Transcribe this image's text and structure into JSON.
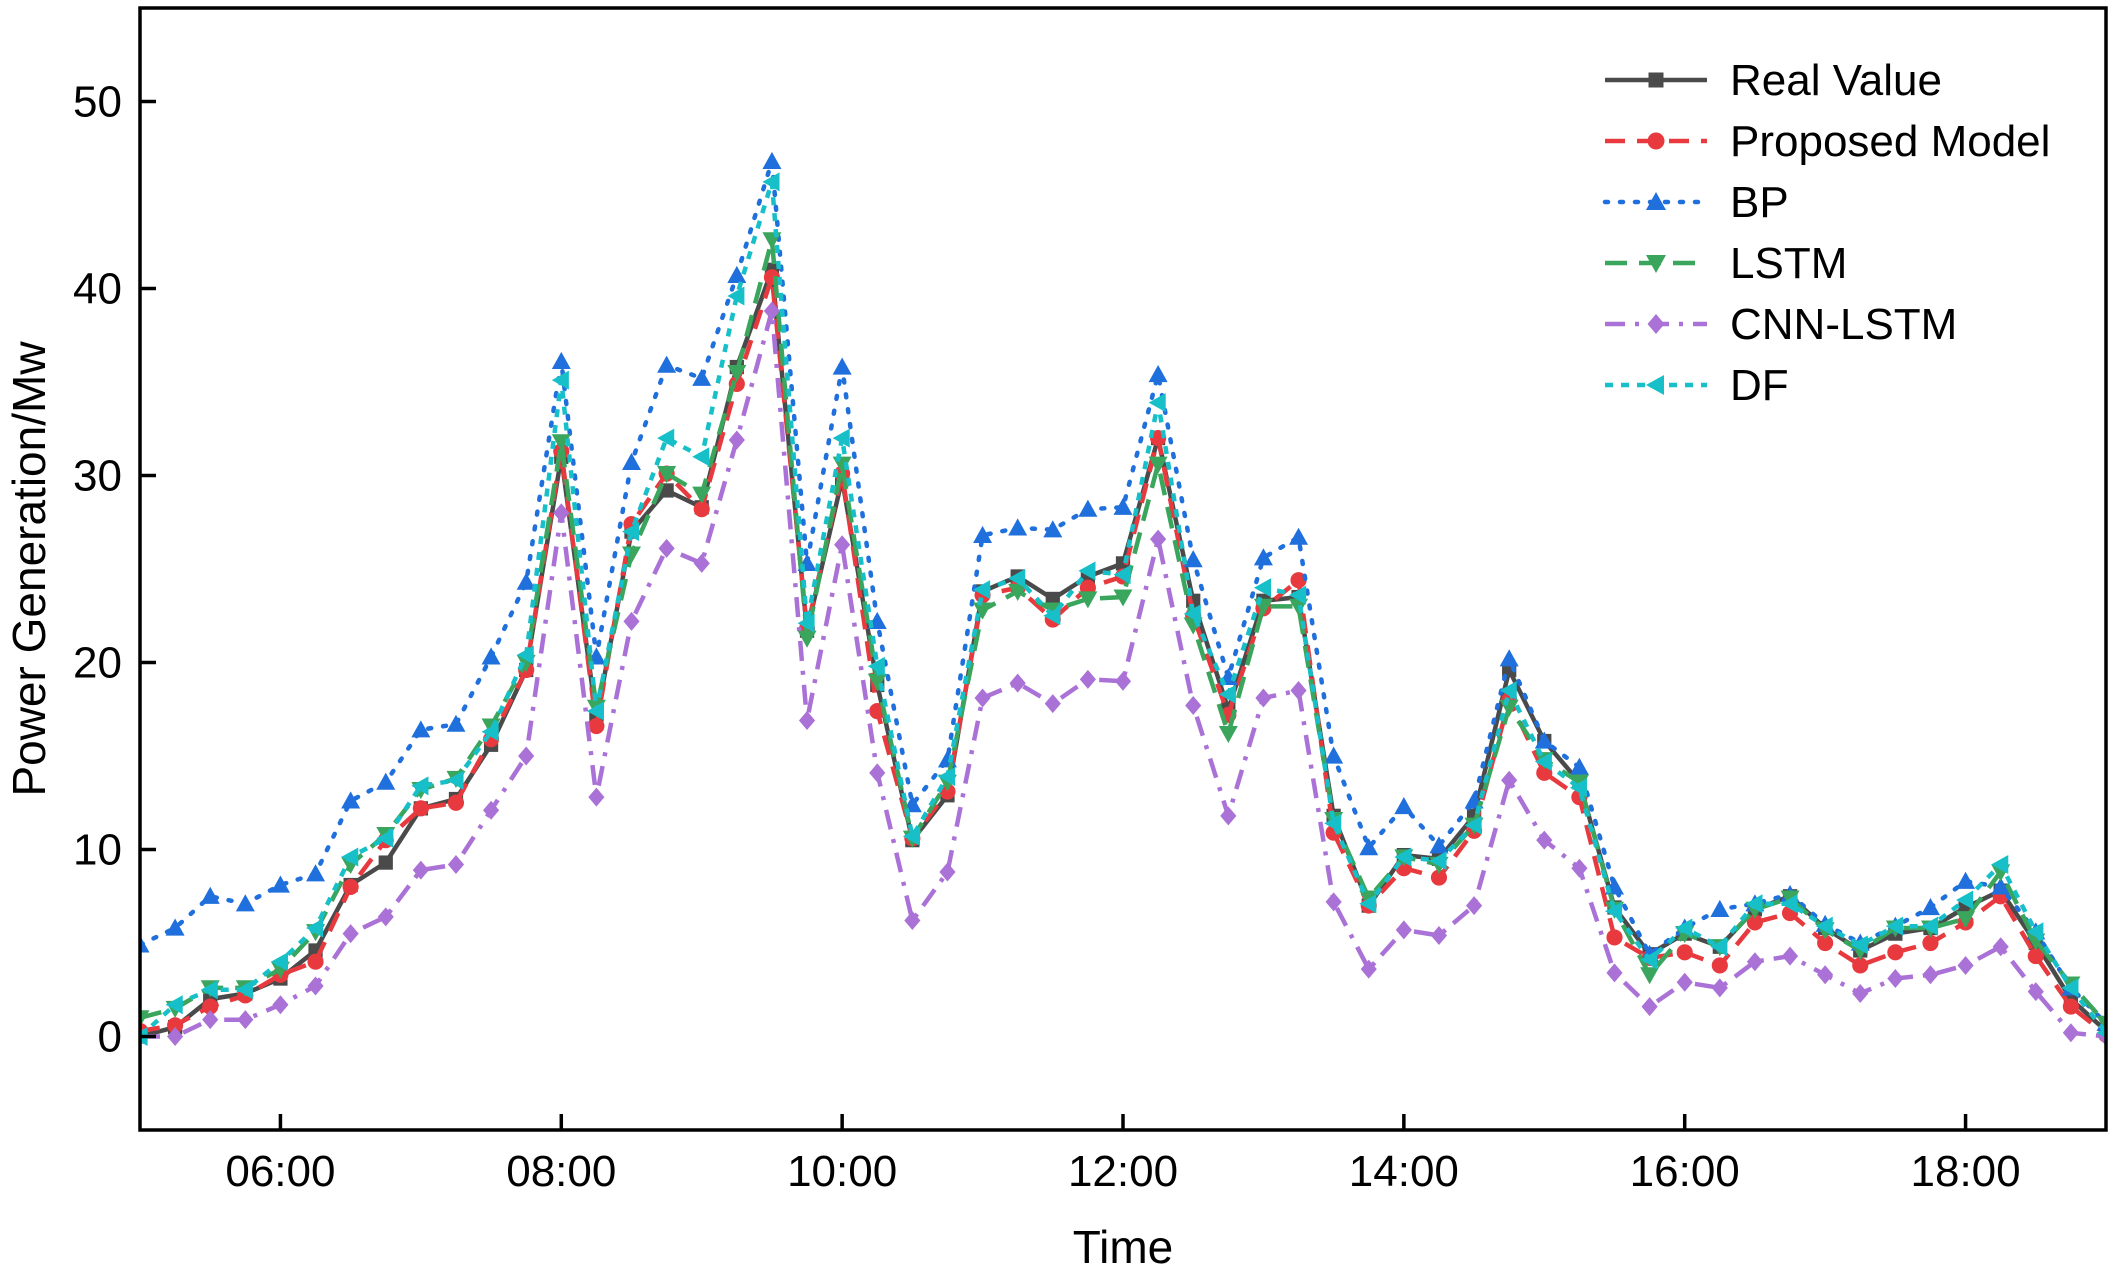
{
  "chart_data": {
    "type": "line",
    "title": "",
    "xlabel": "Time",
    "ylabel": "Power Generation/Mw",
    "xlim": [
      "05:00",
      "19:00"
    ],
    "ylim": [
      -5,
      55
    ],
    "xticks": [
      "06:00",
      "08:00",
      "10:00",
      "12:00",
      "14:00",
      "16:00",
      "18:00"
    ],
    "yticks": [
      0,
      10,
      20,
      30,
      40,
      50
    ],
    "legend_position": "top-right",
    "grid": false,
    "x": [
      "05:00",
      "05:15",
      "05:30",
      "05:45",
      "06:00",
      "06:15",
      "06:30",
      "06:45",
      "07:00",
      "07:15",
      "07:30",
      "07:45",
      "08:00",
      "08:15",
      "08:30",
      "08:45",
      "09:00",
      "09:15",
      "09:30",
      "09:45",
      "10:00",
      "10:15",
      "10:30",
      "10:45",
      "11:00",
      "11:15",
      "11:30",
      "11:45",
      "12:00",
      "12:15",
      "12:30",
      "12:45",
      "13:00",
      "13:15",
      "13:30",
      "13:45",
      "14:00",
      "14:15",
      "14:30",
      "14:45",
      "15:00",
      "15:15",
      "15:30",
      "15:45",
      "16:00",
      "16:15",
      "16:30",
      "16:45",
      "17:00",
      "17:15",
      "17:30",
      "17:45",
      "18:00",
      "18:15",
      "18:30",
      "18:45",
      "19:00"
    ],
    "series": [
      {
        "name": "Real Value",
        "color": "#4a4a4a",
        "dash": "",
        "marker": "square",
        "values": [
          0,
          0.5,
          2,
          2.3,
          3.1,
          4.6,
          8.1,
          9.3,
          12.2,
          12.7,
          15.6,
          19.6,
          31.0,
          17.0,
          27.0,
          29.2,
          28.3,
          35.8,
          41.0,
          21.7,
          29.8,
          18.8,
          10.5,
          12.9,
          23.8,
          24.6,
          23.4,
          24.6,
          25.3,
          32.0,
          23.3,
          17.5,
          23.3,
          23.5,
          11.8,
          7.0,
          9.7,
          9.5,
          11.8,
          19.6,
          15.8,
          13.6,
          6.9,
          4.4,
          5.5,
          4.8,
          6.8,
          7.5,
          5.8,
          4.6,
          5.5,
          5.8,
          6.9,
          7.8,
          5.0,
          2.0,
          0.3
        ]
      },
      {
        "name": "Proposed Model",
        "color": "#e83a3e",
        "dash": "20,12",
        "marker": "circle",
        "values": [
          0.3,
          0.6,
          1.6,
          2.2,
          3.3,
          4.0,
          8.0,
          10.5,
          12.2,
          12.5,
          15.9,
          19.6,
          31.3,
          16.6,
          27.4,
          30.1,
          28.2,
          34.9,
          40.6,
          21.8,
          30.1,
          17.4,
          10.6,
          13.1,
          23.6,
          24.0,
          22.3,
          24.0,
          24.6,
          32.0,
          22.5,
          17.2,
          22.9,
          24.4,
          10.9,
          7.0,
          9.0,
          8.5,
          11.0,
          18.0,
          14.1,
          12.8,
          5.3,
          4.2,
          4.5,
          3.8,
          6.1,
          6.6,
          5.0,
          3.8,
          4.5,
          5.0,
          6.1,
          7.5,
          4.3,
          1.6,
          0.1
        ]
      },
      {
        "name": "BP",
        "color": "#1f6fdc",
        "dash": "3,12",
        "marker": "triangle-up",
        "values": [
          4.9,
          5.8,
          7.5,
          7.1,
          8.1,
          8.7,
          12.6,
          13.6,
          16.4,
          16.7,
          20.3,
          24.3,
          36.1,
          20.3,
          30.7,
          35.9,
          35.2,
          40.7,
          46.8,
          25.3,
          35.8,
          22.2,
          12.4,
          14.8,
          26.8,
          27.2,
          27.1,
          28.2,
          28.3,
          35.4,
          25.5,
          19.2,
          25.6,
          26.7,
          15.0,
          10.1,
          12.3,
          10.2,
          12.6,
          20.2,
          15.8,
          14.4,
          8.0,
          4.4,
          5.8,
          6.8,
          7.1,
          7.6,
          6.0,
          5.0,
          5.9,
          6.9,
          8.3,
          8.0,
          5.6,
          2.6,
          0.7
        ]
      },
      {
        "name": "LSTM",
        "color": "#3aa55c",
        "dash": "22,12",
        "marker": "triangle-down",
        "values": [
          1.0,
          1.5,
          2.6,
          2.6,
          3.6,
          5.6,
          9.2,
          10.8,
          13.2,
          13.8,
          16.6,
          20.0,
          31.8,
          17.6,
          25.8,
          30.1,
          29.0,
          35.5,
          42.6,
          21.3,
          30.6,
          19.0,
          10.6,
          13.6,
          22.8,
          23.8,
          22.8,
          23.4,
          23.5,
          30.6,
          22.0,
          16.2,
          23.0,
          23.0,
          11.6,
          7.4,
          9.6,
          9.2,
          11.3,
          17.6,
          14.8,
          13.6,
          6.8,
          3.3,
          5.5,
          4.8,
          6.8,
          7.4,
          5.7,
          4.6,
          5.8,
          5.8,
          6.3,
          8.8,
          5.1,
          2.8,
          0.7
        ]
      },
      {
        "name": "CNN-LSTM",
        "color": "#aa72d6",
        "dash": "20,10,4,10",
        "marker": "diamond",
        "values": [
          0.0,
          0.0,
          0.9,
          0.9,
          1.7,
          2.7,
          5.5,
          6.4,
          8.9,
          9.2,
          12.1,
          15.0,
          28.0,
          12.8,
          22.2,
          26.1,
          25.3,
          31.9,
          38.8,
          16.9,
          26.3,
          14.1,
          6.2,
          8.8,
          18.1,
          18.9,
          17.8,
          19.1,
          19.0,
          26.6,
          17.7,
          11.8,
          18.1,
          18.5,
          7.2,
          3.6,
          5.7,
          5.4,
          7.0,
          13.7,
          10.5,
          9.0,
          3.4,
          1.6,
          2.9,
          2.6,
          4.0,
          4.3,
          3.3,
          2.3,
          3.1,
          3.3,
          3.8,
          4.8,
          2.4,
          0.2,
          0.0
        ]
      },
      {
        "name": "DF",
        "color": "#17c0c8",
        "dash": "8,8",
        "marker": "triangle-left",
        "values": [
          0.0,
          1.7,
          2.5,
          2.5,
          4.0,
          5.8,
          9.6,
          10.6,
          13.4,
          13.7,
          16.3,
          20.4,
          35.1,
          17.4,
          27.0,
          32.0,
          31.0,
          39.6,
          45.7,
          22.1,
          32.0,
          19.8,
          10.7,
          13.9,
          23.9,
          24.5,
          22.5,
          24.9,
          24.7,
          33.9,
          22.6,
          18.3,
          24.0,
          23.6,
          11.4,
          7.1,
          9.6,
          9.4,
          11.3,
          18.5,
          14.7,
          13.3,
          6.7,
          4.1,
          5.8,
          4.8,
          7.1,
          7.1,
          5.9,
          4.9,
          5.9,
          5.9,
          7.3,
          9.2,
          5.6,
          2.6,
          0.2
        ]
      }
    ]
  }
}
